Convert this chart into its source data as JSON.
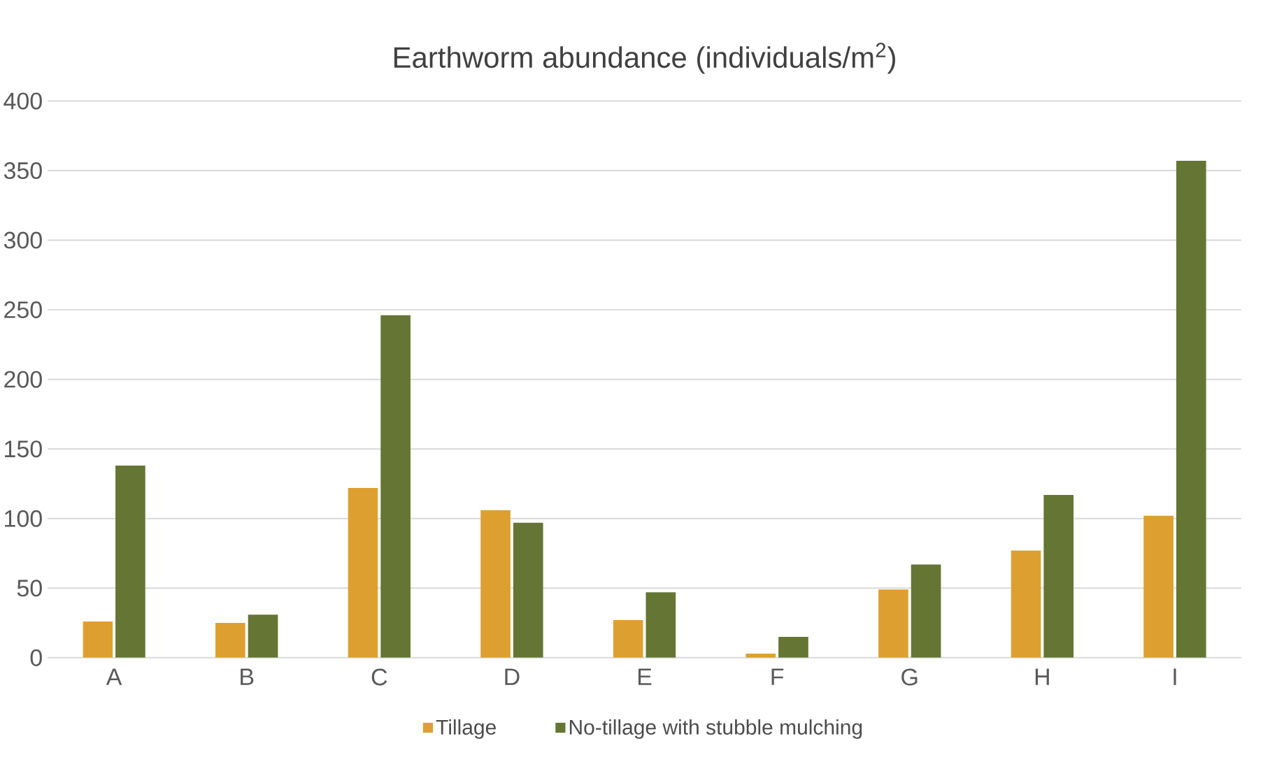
{
  "chart_data": {
    "type": "bar",
    "title": "Earthworm abundance (individuals/m$^{2}$)",
    "categories": [
      "A",
      "B",
      "C",
      "D",
      "E",
      "F",
      "G",
      "H",
      "I"
    ],
    "series": [
      {
        "name": "Tillage",
        "color": "#dda030",
        "values": [
          26,
          25,
          122,
          106,
          27,
          3,
          49,
          77,
          102
        ]
      },
      {
        "name": "No-tillage with stubble mulching",
        "color": "#657533",
        "values": [
          138,
          31,
          246,
          97,
          47,
          15,
          67,
          117,
          357
        ]
      }
    ],
    "ylim": [
      0,
      400
    ],
    "yticks": [
      0,
      50,
      100,
      150,
      200,
      250,
      300,
      350,
      400
    ],
    "grid": "y",
    "legend": "bottom"
  }
}
